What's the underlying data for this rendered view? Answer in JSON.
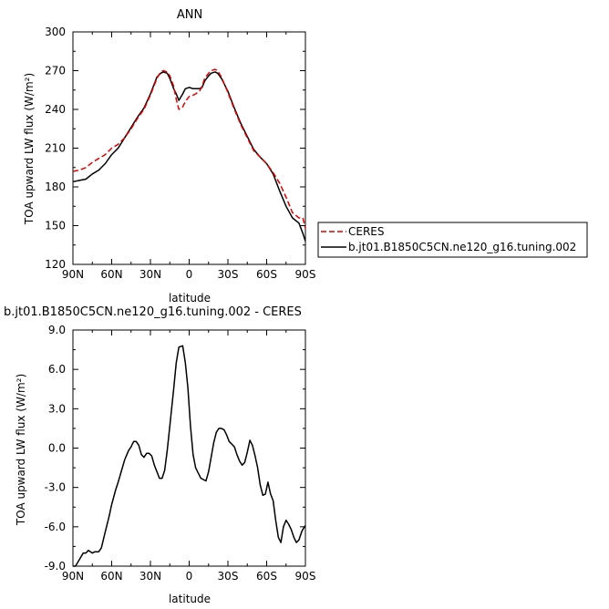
{
  "chart_data": [
    {
      "type": "line",
      "title": "ANN",
      "xlabel": "latitude",
      "ylabel": "TOA upward LW flux (W/m²)",
      "ylim": [
        120,
        300
      ],
      "yticks": [
        "120",
        "150",
        "180",
        "210",
        "240",
        "270",
        "300"
      ],
      "xlim": [
        -90,
        90
      ],
      "xticks": [
        "90N",
        "60N",
        "30N",
        "0",
        "30S",
        "60S",
        "90S"
      ],
      "legend_position": "right",
      "series": [
        {
          "name": "CERES",
          "color": "#e00000",
          "dash": "dashed",
          "x": [
            -90,
            -85,
            -80,
            -75,
            -70,
            -65,
            -60,
            -55,
            -50,
            -45,
            -40,
            -35,
            -30,
            -25,
            -22,
            -20,
            -17,
            -15,
            -12,
            -10,
            -8,
            -5,
            -3,
            0,
            3,
            5,
            8,
            10,
            12,
            15,
            17,
            20,
            22,
            25,
            30,
            35,
            40,
            45,
            50,
            55,
            60,
            65,
            70,
            75,
            80,
            85,
            88,
            90
          ],
          "y": [
            192,
            193,
            195,
            199,
            202,
            205,
            210,
            213,
            218,
            225,
            233,
            240,
            251,
            264,
            269,
            270,
            269,
            266,
            258,
            248,
            240,
            242,
            246,
            250,
            251,
            252,
            254,
            258,
            264,
            268,
            270,
            271,
            270,
            265,
            253,
            240,
            228,
            218,
            208,
            203,
            198,
            191,
            183,
            172,
            160,
            156,
            156,
            148
          ]
        },
        {
          "name": "b.jt01.B1850C5CN.ne120_g16.tuning.002",
          "color": "#000000",
          "dash": "solid",
          "x": [
            -90,
            -85,
            -80,
            -75,
            -70,
            -65,
            -60,
            -55,
            -50,
            -45,
            -40,
            -35,
            -30,
            -25,
            -22,
            -20,
            -17,
            -15,
            -12,
            -10,
            -8,
            -5,
            -3,
            0,
            3,
            5,
            8,
            10,
            12,
            15,
            17,
            20,
            22,
            25,
            30,
            35,
            40,
            45,
            50,
            55,
            60,
            65,
            70,
            75,
            80,
            85,
            88,
            90
          ],
          "y": [
            184,
            185,
            186,
            190,
            193,
            198,
            205,
            210,
            218,
            226,
            234,
            241,
            252,
            265,
            268,
            269,
            268,
            264,
            256,
            252,
            247,
            252,
            256,
            257,
            256,
            256,
            256,
            257,
            262,
            266,
            268,
            269,
            268,
            264,
            254,
            241,
            229,
            219,
            209,
            203,
            198,
            190,
            177,
            165,
            156,
            152,
            144,
            138
          ]
        }
      ]
    },
    {
      "type": "line",
      "title": "b.jt01.B1850C5CN.ne120_g16.tuning.002 - CERES",
      "xlabel": "latitude",
      "ylabel": "TOA upward LW flux (W/m²)",
      "ylim": [
        -9.0,
        9.0
      ],
      "yticks": [
        "-9.0",
        "-6.0",
        "-3.0",
        "0.0",
        "3.0",
        "6.0",
        "9.0"
      ],
      "xlim": [
        -90,
        90
      ],
      "xticks": [
        "90N",
        "60N",
        "30N",
        "0",
        "30S",
        "60S",
        "90S"
      ],
      "series": [
        {
          "color": "#000000",
          "dash": "solid",
          "x": [
            -90,
            -88,
            -85,
            -82,
            -80,
            -78,
            -75,
            -73,
            -70,
            -68,
            -65,
            -62,
            -60,
            -57,
            -55,
            -52,
            -50,
            -47,
            -45,
            -43,
            -41,
            -39,
            -37,
            -35,
            -33,
            -31,
            -29,
            -27,
            -25,
            -23,
            -21,
            -19,
            -17,
            -15,
            -12,
            -10,
            -8,
            -5,
            -3,
            -1,
            1,
            3,
            5,
            7,
            9,
            11,
            13,
            15,
            17,
            19,
            21,
            23,
            25,
            27,
            29,
            31,
            33,
            35,
            37,
            39,
            41,
            43,
            45,
            47,
            49,
            51,
            53,
            55,
            57,
            59,
            61,
            63,
            65,
            67,
            69,
            71,
            73,
            75,
            77,
            79,
            81,
            83,
            85,
            87,
            88,
            90
          ],
          "y": [
            -9.0,
            -9.0,
            -8.5,
            -8.0,
            -8.0,
            -7.8,
            -8.0,
            -7.9,
            -7.9,
            -7.6,
            -6.4,
            -5.2,
            -4.3,
            -3.2,
            -2.6,
            -1.6,
            -0.9,
            -0.2,
            0.1,
            0.5,
            0.5,
            0.2,
            -0.5,
            -0.7,
            -0.4,
            -0.4,
            -0.6,
            -1.3,
            -1.8,
            -2.3,
            -2.3,
            -1.7,
            -0.2,
            1.7,
            4.5,
            6.5,
            7.7,
            7.8,
            6.5,
            4.6,
            1.7,
            -0.5,
            -1.5,
            -1.9,
            -2.3,
            -2.4,
            -2.5,
            -1.8,
            -0.7,
            0.4,
            1.2,
            1.5,
            1.5,
            1.4,
            1.0,
            0.5,
            0.3,
            0.1,
            -0.5,
            -1.0,
            -1.3,
            -1.1,
            -0.3,
            0.6,
            0.2,
            -0.6,
            -1.5,
            -2.8,
            -3.6,
            -3.5,
            -2.6,
            -3.5,
            -4.0,
            -5.5,
            -6.8,
            -7.2,
            -6.0,
            -5.5,
            -5.8,
            -6.2,
            -6.8,
            -7.2,
            -7.0,
            -6.4,
            -6.2,
            -5.9
          ]
        }
      ]
    }
  ]
}
